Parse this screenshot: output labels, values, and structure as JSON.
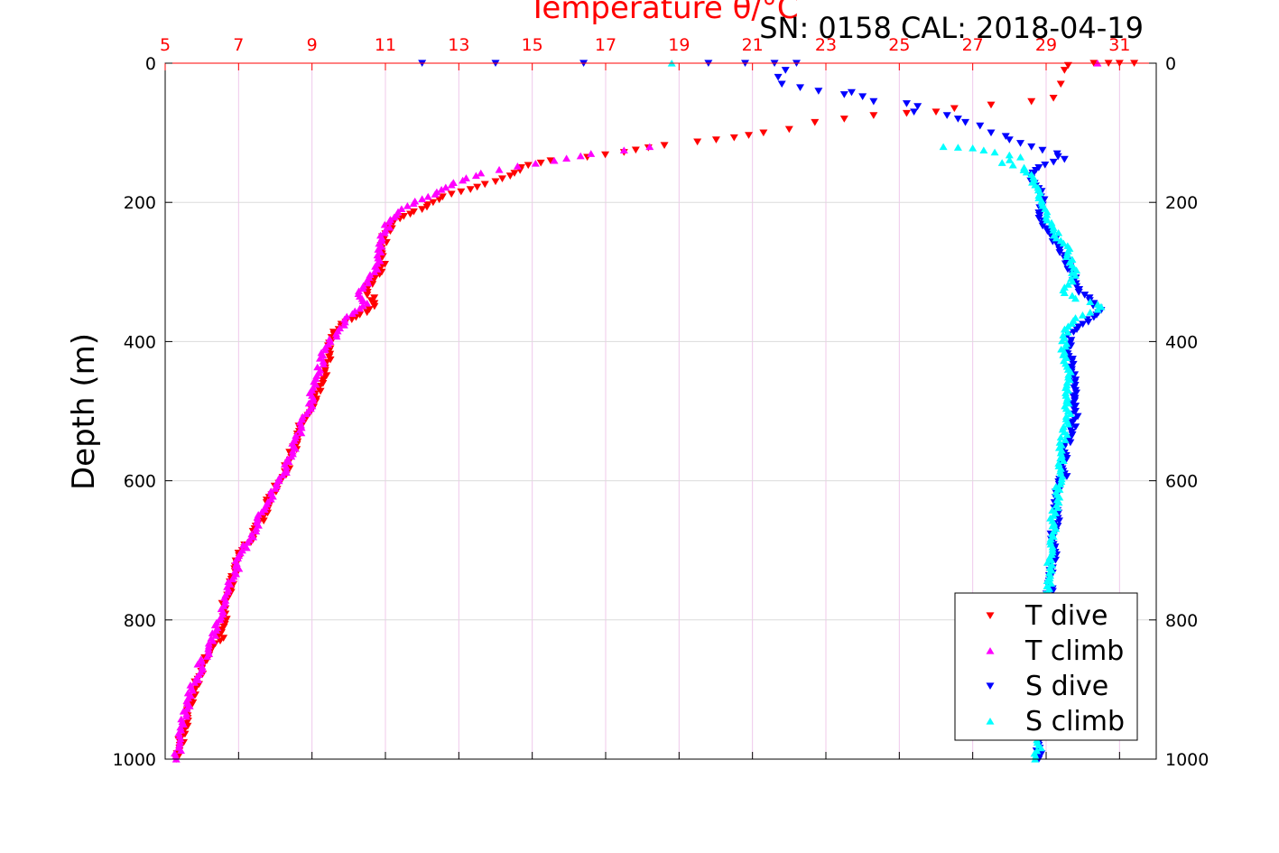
{
  "chart_data": {
    "type": "scatter",
    "title": "Temperature θ/°C",
    "annotation": "SN: 0158  CAL: 2018-04-19",
    "ylabel": "Depth (m)",
    "xlim": [
      5,
      32
    ],
    "ylim": [
      0,
      1000
    ],
    "y_inverted": true,
    "grid": true,
    "x_ticks": [
      5,
      7,
      9,
      11,
      13,
      15,
      17,
      19,
      21,
      23,
      25,
      27,
      29,
      31
    ],
    "y_ticks": [
      0,
      200,
      400,
      600,
      800,
      1000
    ],
    "legend_position": "bottom-right",
    "series": [
      {
        "name": "T dive",
        "color": "#ff0000",
        "marker": "triangle-down",
        "points": [
          [
            31.4,
            0
          ],
          [
            31,
            0
          ],
          [
            30.7,
            0
          ],
          [
            30.3,
            0
          ],
          [
            29.6,
            3
          ],
          [
            29.5,
            10
          ],
          [
            29.4,
            30
          ],
          [
            29.2,
            50
          ],
          [
            28.6,
            55
          ],
          [
            27.5,
            60
          ],
          [
            26.5,
            65
          ],
          [
            26,
            70
          ],
          [
            25.2,
            72
          ],
          [
            24.3,
            75
          ],
          [
            23.5,
            80
          ],
          [
            22.7,
            85
          ],
          [
            22,
            95
          ],
          [
            21.3,
            100
          ],
          [
            20.5,
            107
          ],
          [
            19.5,
            113
          ],
          [
            18.6,
            118
          ],
          [
            17.5,
            128
          ],
          [
            16.5,
            135
          ],
          [
            15.5,
            140
          ],
          [
            14.7,
            150
          ],
          [
            14.4,
            162
          ],
          [
            14,
            170
          ],
          [
            13.5,
            178
          ],
          [
            12.8,
            188
          ],
          [
            12.3,
            200
          ],
          [
            12,
            210
          ],
          [
            11.5,
            220
          ],
          [
            11.2,
            230
          ],
          [
            11,
            245
          ],
          [
            10.9,
            270
          ],
          [
            10.9,
            300
          ],
          [
            10.7,
            310
          ],
          [
            10.5,
            325
          ],
          [
            10.7,
            345
          ],
          [
            10.5,
            358
          ],
          [
            10.2,
            365
          ],
          [
            9.8,
            375
          ],
          [
            9.6,
            390
          ],
          [
            9.5,
            410
          ],
          [
            9.4,
            430
          ],
          [
            9.3,
            460
          ],
          [
            9,
            490
          ],
          [
            8.8,
            510
          ],
          [
            8.6,
            540
          ],
          [
            8.4,
            570
          ],
          [
            8.2,
            595
          ],
          [
            7.9,
            620
          ],
          [
            7.7,
            650
          ],
          [
            7.4,
            680
          ],
          [
            7.1,
            700
          ],
          [
            6.9,
            730
          ],
          [
            6.8,
            760
          ],
          [
            6.6,
            780
          ],
          [
            6.6,
            810
          ],
          [
            6.5,
            830
          ],
          [
            6.2,
            850
          ],
          [
            6,
            870
          ],
          [
            5.8,
            900
          ],
          [
            5.6,
            930
          ],
          [
            5.5,
            960
          ],
          [
            5.4,
            980
          ],
          [
            5.3,
            1000
          ]
        ]
      },
      {
        "name": "T climb",
        "color": "#ff00ff",
        "marker": "triangle-up",
        "points": [
          [
            30.4,
            0
          ],
          [
            18.2,
            120
          ],
          [
            17.5,
            125
          ],
          [
            16.6,
            130
          ],
          [
            15.6,
            140
          ],
          [
            14.6,
            148
          ],
          [
            14.1,
            153
          ],
          [
            13.6,
            158
          ],
          [
            13.2,
            165
          ],
          [
            12.8,
            175
          ],
          [
            12.4,
            185
          ],
          [
            12,
            195
          ],
          [
            11.6,
            205
          ],
          [
            11.3,
            218
          ],
          [
            11.1,
            228
          ],
          [
            11,
            240
          ],
          [
            10.9,
            255
          ],
          [
            10.8,
            280
          ],
          [
            10.7,
            300
          ],
          [
            10.4,
            320
          ],
          [
            10.3,
            335
          ],
          [
            10.5,
            345
          ],
          [
            10.1,
            360
          ],
          [
            9.9,
            372
          ],
          [
            9.7,
            385
          ],
          [
            9.5,
            400
          ],
          [
            9.3,
            420
          ],
          [
            9.2,
            445
          ],
          [
            9,
            470
          ],
          [
            8.9,
            500
          ],
          [
            8.7,
            520
          ],
          [
            8.5,
            550
          ],
          [
            8.3,
            580
          ],
          [
            8.1,
            600
          ],
          [
            7.8,
            630
          ],
          [
            7.5,
            660
          ],
          [
            7.3,
            685
          ],
          [
            7.1,
            700
          ],
          [
            6.9,
            730
          ],
          [
            6.7,
            760
          ],
          [
            6.6,
            780
          ],
          [
            6.5,
            800
          ],
          [
            6.3,
            830
          ],
          [
            6,
            860
          ],
          [
            5.8,
            890
          ],
          [
            5.6,
            920
          ],
          [
            5.5,
            950
          ],
          [
            5.4,
            975
          ],
          [
            5.3,
            1000
          ]
        ]
      },
      {
        "name": "S dive",
        "color": "#0000ff",
        "marker": "triangle-down",
        "points": [
          [
            12,
            0
          ],
          [
            14,
            0
          ],
          [
            16.4,
            0
          ],
          [
            19.8,
            0
          ],
          [
            20.8,
            0
          ],
          [
            21.6,
            0
          ],
          [
            22.2,
            0
          ],
          [
            21.9,
            10
          ],
          [
            21.7,
            20
          ],
          [
            21.8,
            30
          ],
          [
            22.3,
            35
          ],
          [
            22.8,
            40
          ],
          [
            23.7,
            42
          ],
          [
            23.5,
            45
          ],
          [
            24,
            48
          ],
          [
            24.3,
            55
          ],
          [
            25.2,
            58
          ],
          [
            25.5,
            62
          ],
          [
            25.4,
            70
          ],
          [
            26.3,
            75
          ],
          [
            26.6,
            80
          ],
          [
            26.8,
            85
          ],
          [
            27.2,
            90
          ],
          [
            27.5,
            100
          ],
          [
            27.9,
            105
          ],
          [
            28,
            110
          ],
          [
            28.3,
            115
          ],
          [
            28.6,
            120
          ],
          [
            28.9,
            125
          ],
          [
            29.3,
            130
          ],
          [
            29.5,
            138
          ],
          [
            28.8,
            150
          ],
          [
            28.6,
            165
          ],
          [
            28.8,
            180
          ],
          [
            28.9,
            200
          ],
          [
            28.8,
            215
          ],
          [
            28.9,
            230
          ],
          [
            29.1,
            245
          ],
          [
            29.3,
            260
          ],
          [
            29.5,
            280
          ],
          [
            29.7,
            300
          ],
          [
            29.9,
            325
          ],
          [
            30.3,
            345
          ],
          [
            30.5,
            355
          ],
          [
            30.3,
            365
          ],
          [
            30,
            375
          ],
          [
            29.6,
            390
          ],
          [
            29.6,
            410
          ],
          [
            29.7,
            440
          ],
          [
            29.8,
            470
          ],
          [
            29.8,
            500
          ],
          [
            29.7,
            530
          ],
          [
            29.5,
            560
          ],
          [
            29.5,
            590
          ],
          [
            29.3,
            620
          ],
          [
            29.3,
            650
          ],
          [
            29.2,
            680
          ],
          [
            29.2,
            710
          ],
          [
            29.1,
            740
          ],
          [
            29.1,
            770
          ],
          [
            29.0,
            800
          ],
          [
            29.0,
            830
          ],
          [
            28.9,
            860
          ],
          [
            28.9,
            890
          ],
          [
            28.9,
            920
          ],
          [
            28.8,
            950
          ],
          [
            28.8,
            980
          ],
          [
            28.8,
            1000
          ]
        ]
      },
      {
        "name": "S climb",
        "color": "#00ffff",
        "marker": "triangle-up",
        "points": [
          [
            18.8,
            0
          ],
          [
            26.2,
            120
          ],
          [
            26.6,
            121
          ],
          [
            27,
            122
          ],
          [
            27.3,
            125
          ],
          [
            27.6,
            128
          ],
          [
            28,
            132
          ],
          [
            28.3,
            135
          ],
          [
            27.8,
            143
          ],
          [
            28.4,
            150
          ],
          [
            28.6,
            160
          ],
          [
            28.7,
            175
          ],
          [
            28.8,
            190
          ],
          [
            28.9,
            205
          ],
          [
            29.0,
            222
          ],
          [
            29.2,
            240
          ],
          [
            29.4,
            255
          ],
          [
            29.6,
            270
          ],
          [
            29.7,
            290
          ],
          [
            29.8,
            305
          ],
          [
            29.6,
            318
          ],
          [
            29.5,
            330
          ],
          [
            29.8,
            338
          ],
          [
            30.2,
            343
          ],
          [
            30.5,
            350
          ],
          [
            30.2,
            358
          ],
          [
            29.8,
            366
          ],
          [
            29.6,
            378
          ],
          [
            29.5,
            395
          ],
          [
            29.5,
            415
          ],
          [
            29.6,
            440
          ],
          [
            29.6,
            470
          ],
          [
            29.6,
            500
          ],
          [
            29.5,
            530
          ],
          [
            29.4,
            560
          ],
          [
            29.4,
            590
          ],
          [
            29.3,
            620
          ],
          [
            29.2,
            650
          ],
          [
            29.2,
            680
          ],
          [
            29.1,
            710
          ],
          [
            29.1,
            740
          ],
          [
            29.0,
            770
          ],
          [
            29.0,
            800
          ],
          [
            28.9,
            830
          ],
          [
            28.9,
            860
          ],
          [
            28.9,
            890
          ],
          [
            28.8,
            920
          ],
          [
            28.8,
            950
          ],
          [
            28.8,
            980
          ],
          [
            28.7,
            1000
          ]
        ]
      }
    ]
  }
}
